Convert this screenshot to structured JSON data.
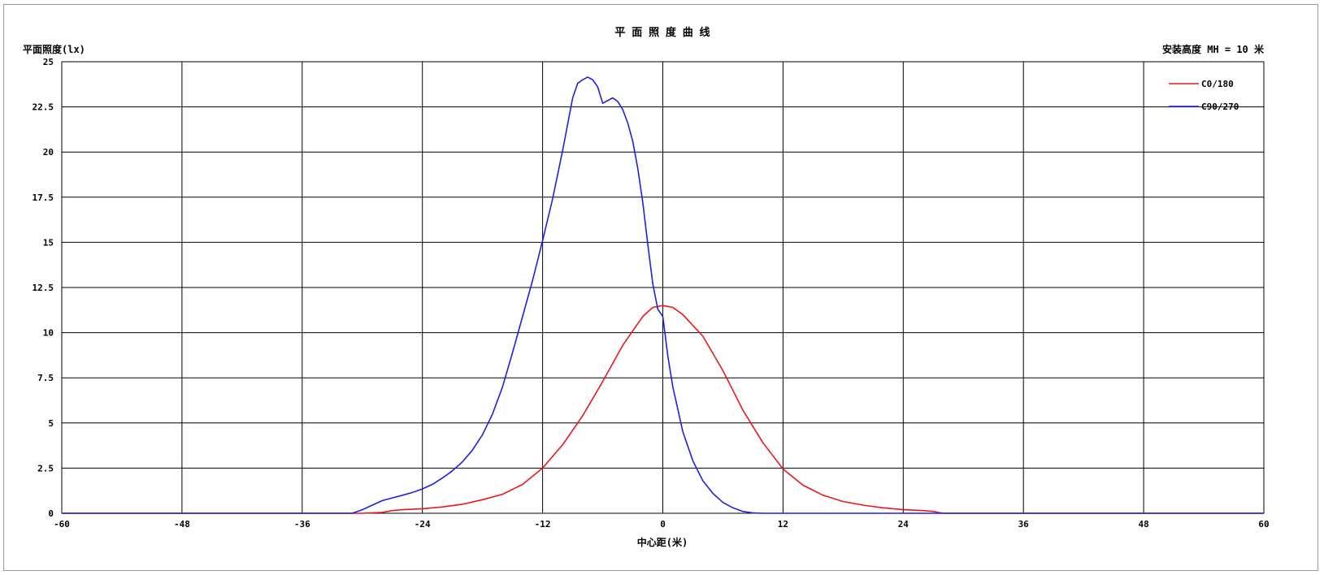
{
  "chart_data": {
    "type": "line",
    "title": "平 面 照 度 曲 线",
    "ylabel": "平面照度(lx)",
    "xlabel": "中心距(米)",
    "annotation": "安装高度 MH = 10 米",
    "xlim": [
      -60,
      60
    ],
    "ylim": [
      0,
      25
    ],
    "xticks": [
      -60,
      -48,
      -36,
      -24,
      -12,
      0,
      12,
      24,
      36,
      48,
      60
    ],
    "yticks": [
      0,
      2.5,
      5,
      7.5,
      10,
      12.5,
      15,
      17.5,
      20,
      22.5,
      25
    ],
    "grid": true,
    "legend_position": "top-right",
    "series": [
      {
        "name": "C0/180",
        "color": "#e8171d",
        "x": [
          -60,
          -32,
          -30,
          -28,
          -27,
          -26,
          -24,
          -22,
          -20,
          -18,
          -16,
          -14,
          -12,
          -10,
          -8,
          -6,
          -4,
          -2,
          -1,
          0,
          1,
          2,
          4,
          6,
          8,
          10,
          12,
          14,
          16,
          18,
          20,
          22,
          24,
          26,
          27,
          28,
          30,
          60
        ],
        "y": [
          0,
          0,
          0,
          0.05,
          0.15,
          0.2,
          0.25,
          0.35,
          0.5,
          0.75,
          1.05,
          1.6,
          2.5,
          3.8,
          5.4,
          7.3,
          9.3,
          10.9,
          11.4,
          11.5,
          11.4,
          11.0,
          9.8,
          7.9,
          5.7,
          3.9,
          2.45,
          1.55,
          1.0,
          0.65,
          0.45,
          0.3,
          0.2,
          0.15,
          0.1,
          0,
          0,
          0
        ]
      },
      {
        "name": "C90/270",
        "color": "#1f1fe0",
        "x": [
          -60,
          -31,
          -30,
          -29,
          -28,
          -27,
          -26,
          -25,
          -24,
          -23,
          -22,
          -21,
          -20,
          -19,
          -18,
          -17,
          -16,
          -15,
          -14,
          -13,
          -12,
          -11,
          -10,
          -9,
          -8.5,
          -8,
          -7.5,
          -7,
          -6.5,
          -6,
          -5.5,
          -5,
          -4.5,
          -4,
          -3.5,
          -3,
          -2.5,
          -2,
          -1.5,
          -1,
          -0.5,
          0,
          0.5,
          1,
          2,
          3,
          4,
          5,
          6,
          7,
          8,
          9,
          10,
          12,
          60
        ],
        "y": [
          0,
          0,
          0.2,
          0.45,
          0.7,
          0.85,
          1.0,
          1.15,
          1.35,
          1.6,
          1.95,
          2.35,
          2.85,
          3.5,
          4.35,
          5.5,
          7.0,
          8.9,
          10.9,
          12.9,
          15.1,
          17.4,
          20.1,
          23.0,
          23.8,
          24.0,
          24.15,
          24.0,
          23.6,
          22.7,
          22.85,
          23.0,
          22.8,
          22.35,
          21.6,
          20.6,
          19.1,
          17.2,
          14.9,
          12.7,
          11.3,
          10.9,
          8.7,
          7.0,
          4.5,
          2.9,
          1.8,
          1.1,
          0.6,
          0.3,
          0.1,
          0.02,
          0,
          0,
          0
        ]
      }
    ]
  }
}
